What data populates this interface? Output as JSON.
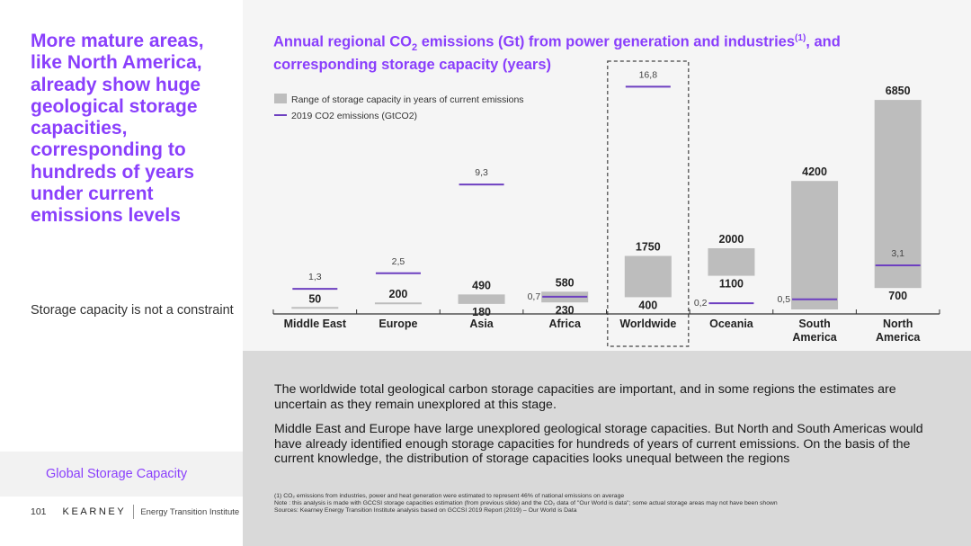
{
  "headline": "More mature areas, like North America, already show huge geological storage capacities, corresponding to hundreds of years under current emissions levels",
  "subnote": "Storage capacity is not a constraint",
  "section_tab": "Global Storage Capacity",
  "footer": {
    "page_number": "101",
    "brand": "KEARNEY",
    "institute": "Energy Transition Institute"
  },
  "chart_title": {
    "part1": "Annual regional CO",
    "sub": "2",
    "part2": " emissions (Gt) from power generation and industries",
    "sup": "(1)",
    "part3": ", and corresponding storage capacity (years)"
  },
  "paragraphs": {
    "p1": "The worldwide total geological carbon storage capacities are important, and in some regions the estimates are uncertain as they remain unexplored at this stage.",
    "p2": "Middle East and Europe have large unexplored geological storage capacities. But North and South Americas would have already identified enough storage capacities for hundreds of years of current emissions. On the basis of the current knowledge, the distribution of storage capacities looks unequal between the regions"
  },
  "footnotes": {
    "line1": "(1) CO₂ emissions from industries, power and heat generation were estimated to represent 46% of national emissions on average",
    "line2": "Note : this analysis is made with GCCSI storage capacities estimation (from previous slide) and the CO₂ data of \"Our World is data\"; some actual storage areas may not have been shown",
    "line3": "Sources: Kearney Energy Transition Institute analysis based on GCCSI 2019 Report (2019) – Our World is Data"
  },
  "colors": {
    "accent": "#8a3ffc",
    "bar": "#bdbdbd",
    "line": "#6d3fc0"
  },
  "chart_data": {
    "type": "bar",
    "legend": {
      "range_label": "Range of storage capacity in years of current emissions",
      "emissions_label": "2019 CO2 emissions (GtCO2)",
      "placement": "top-left"
    },
    "categories": [
      "Middle East",
      "Europe",
      "Asia",
      "Africa",
      "Worldwide",
      "Oceania",
      "South America",
      "North America"
    ],
    "category_lines": [
      [
        "Middle East"
      ],
      [
        "Europe"
      ],
      [
        "Asia"
      ],
      [
        "Africa"
      ],
      [
        "Worldwide"
      ],
      [
        "Oceania"
      ],
      [
        "South",
        "America"
      ],
      [
        "North",
        "America"
      ]
    ],
    "storage_low": [
      null,
      null,
      180,
      230,
      400,
      1100,
      null,
      700
    ],
    "storage_high": [
      50,
      200,
      490,
      580,
      1750,
      2000,
      4200,
      6850
    ],
    "storage_low_labels": [
      "",
      "",
      "180",
      "230",
      "400",
      "1100",
      "",
      "700"
    ],
    "storage_high_labels": [
      "50",
      "200",
      "490",
      "580",
      "1750",
      "2000",
      "4200",
      "6850"
    ],
    "emissions": [
      1.3,
      2.5,
      9.3,
      0.7,
      16.8,
      0.2,
      0.5,
      3.1
    ],
    "emissions_labels": [
      "1,3",
      "2,5",
      "9,3",
      "0,7",
      "16,8",
      "0,2",
      "0,5",
      "3,1"
    ],
    "highlighted_category": "Worldwide"
  }
}
